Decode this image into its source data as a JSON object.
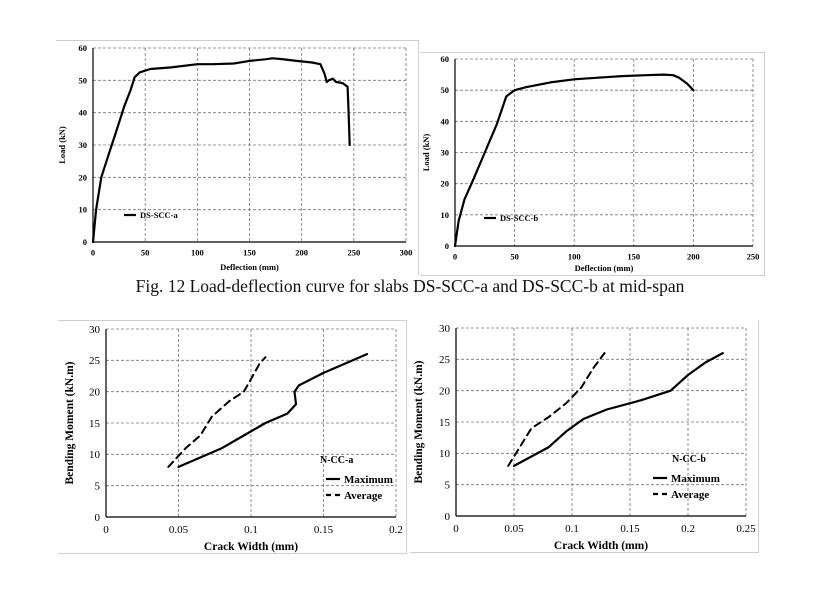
{
  "caption": "Fig. 12 Load-deflection curve for slabs DS-SCC-a and DS-SCC-b at mid-span",
  "chart_data": [
    {
      "type": "line",
      "title": "",
      "xlabel": "Deflection (mm)",
      "ylabel": "Load (kN)",
      "xlim": [
        0,
        300
      ],
      "ylim": [
        0,
        60
      ],
      "xticks": [
        0,
        50,
        100,
        150,
        200,
        250,
        300
      ],
      "yticks": [
        0,
        10,
        20,
        30,
        40,
        50,
        60
      ],
      "grid": true,
      "legend": "middle-left",
      "series": [
        {
          "name": "DS-SCC-a",
          "style": "solid",
          "x": [
            0,
            3,
            8,
            15,
            22,
            30,
            36,
            40,
            45,
            55,
            75,
            100,
            115,
            135,
            150,
            165,
            172,
            180,
            195,
            210,
            218,
            222,
            224,
            226,
            230,
            233,
            237,
            240,
            242,
            244,
            245,
            246
          ],
          "y": [
            0,
            10,
            20,
            27,
            34,
            42,
            47,
            51,
            52.5,
            53.5,
            54,
            55,
            55,
            55.2,
            56,
            56.5,
            56.8,
            56.6,
            56,
            55.5,
            55,
            52,
            49.5,
            50,
            50.5,
            49.5,
            49.3,
            49,
            48.5,
            48,
            40,
            30
          ]
        }
      ]
    },
    {
      "type": "line",
      "title": "",
      "xlabel": "Deflection (mm)",
      "ylabel": "Load (kN)",
      "xlim": [
        0,
        250
      ],
      "ylim": [
        0,
        60
      ],
      "xticks": [
        0,
        50,
        100,
        150,
        200,
        250
      ],
      "yticks": [
        0,
        10,
        20,
        30,
        40,
        50,
        60
      ],
      "grid": true,
      "legend": "middle-left",
      "series": [
        {
          "name": "DS-SCC-b",
          "style": "solid",
          "x": [
            0,
            3,
            8,
            15,
            25,
            35,
            43,
            50,
            60,
            80,
            100,
            120,
            140,
            160,
            175,
            183,
            188,
            195,
            200
          ],
          "y": [
            0,
            8,
            15,
            21,
            30,
            39,
            48,
            50,
            51,
            52.5,
            53.5,
            54,
            54.5,
            54.8,
            55,
            54.8,
            54,
            52,
            50
          ]
        }
      ]
    },
    {
      "type": "line",
      "title": "",
      "annotation": "N-CC-a",
      "xlabel": "Crack Width (mm)",
      "ylabel": "Bending Moment (kN.m)",
      "xlim": [
        0,
        0.2
      ],
      "ylim": [
        0,
        30
      ],
      "xticks": [
        "0",
        "0.05",
        "0.1",
        "0.15",
        "0.2"
      ],
      "yticks": [
        "0",
        "5",
        "10",
        "15",
        "20",
        "25",
        "30"
      ],
      "grid": true,
      "legend": "bottom-right",
      "series": [
        {
          "name": "Maximum",
          "style": "solid",
          "x": [
            0.05,
            0.065,
            0.08,
            0.095,
            0.11,
            0.125,
            0.131,
            0.13,
            0.133,
            0.15,
            0.165,
            0.18
          ],
          "y": [
            8,
            9.5,
            11,
            13,
            15,
            16.5,
            18,
            20,
            21,
            23,
            24.5,
            26
          ]
        },
        {
          "name": "Average",
          "style": "dashed",
          "x": [
            0.043,
            0.055,
            0.065,
            0.073,
            0.085,
            0.095,
            0.1,
            0.106,
            0.11
          ],
          "y": [
            8,
            11,
            13,
            16,
            18.5,
            20,
            22,
            24.5,
            25.5
          ]
        }
      ]
    },
    {
      "type": "line",
      "title": "",
      "annotation": "N-CC-b",
      "xlabel": "Crack Width (mm)",
      "ylabel": "Bending Moment (kN.m)",
      "xlim": [
        0,
        0.25
      ],
      "ylim": [
        0,
        30
      ],
      "xticks": [
        "0",
        "0.05",
        "0.1",
        "0.15",
        "0.2",
        "0.25"
      ],
      "yticks": [
        "0",
        "5",
        "10",
        "15",
        "20",
        "25",
        "30"
      ],
      "grid": true,
      "legend": "bottom-right",
      "series": [
        {
          "name": "Maximum",
          "style": "solid",
          "x": [
            0.05,
            0.065,
            0.08,
            0.095,
            0.11,
            0.13,
            0.16,
            0.185,
            0.2,
            0.215,
            0.23
          ],
          "y": [
            8,
            9.5,
            11,
            13.5,
            15.5,
            17,
            18.5,
            20,
            22.5,
            24.5,
            26
          ]
        },
        {
          "name": "Average",
          "style": "dashed",
          "x": [
            0.045,
            0.055,
            0.065,
            0.08,
            0.095,
            0.108,
            0.118,
            0.128
          ],
          "y": [
            8,
            11,
            14,
            15.8,
            18,
            20.5,
            23.5,
            26
          ]
        }
      ]
    }
  ]
}
